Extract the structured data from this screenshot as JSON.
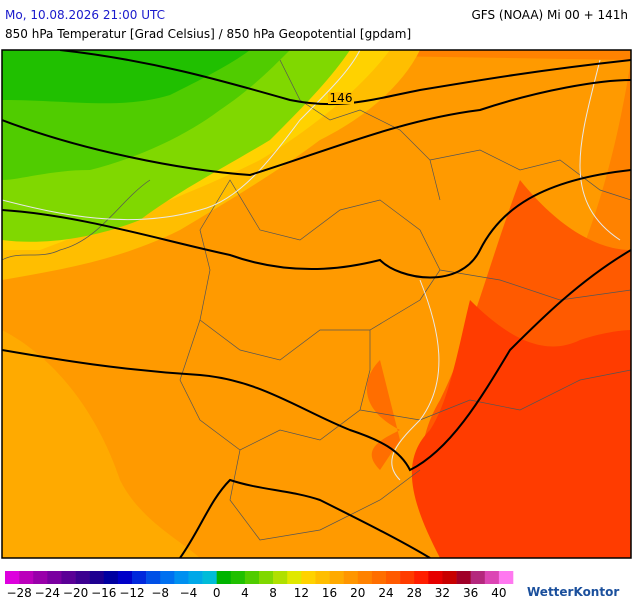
{
  "header": {
    "title_left": "Mo, 10.08.2026 21:00 UTC",
    "title_right": "GFS (NOAA) Mi 00 + 141h",
    "subtitle": "850 hPa Temperatur [Grad Celsius] / 850 hPa Geopotential [gpdam]"
  },
  "map": {
    "contour_label": "146"
  },
  "legend": {
    "colors": [
      "#dd00dd",
      "#bb00bb",
      "#9900aa",
      "#7a00a0",
      "#5a0096",
      "#3c0090",
      "#1e0090",
      "#0000a0",
      "#0000c8",
      "#0028dc",
      "#0050e6",
      "#0070f0",
      "#0090f0",
      "#00a8e8",
      "#00bcd8",
      "#00b400",
      "#20c000",
      "#50cc00",
      "#80d800",
      "#b0e000",
      "#e0e800",
      "#ffd200",
      "#ffbe00",
      "#ffaa00",
      "#ff9600",
      "#ff8200",
      "#ff6e00",
      "#ff5a00",
      "#ff3c00",
      "#ff1e00",
      "#e60000",
      "#c80000",
      "#a00028",
      "#b4287d",
      "#dc46b4",
      "#ff78f0"
    ],
    "labels": [
      "−28",
      "−24",
      "−20",
      "−16",
      "−12",
      "−8",
      "−4",
      "0",
      "4",
      "8",
      "12",
      "16",
      "20",
      "24",
      "28",
      "32",
      "36",
      "40"
    ]
  },
  "brand": "WetterKontor"
}
